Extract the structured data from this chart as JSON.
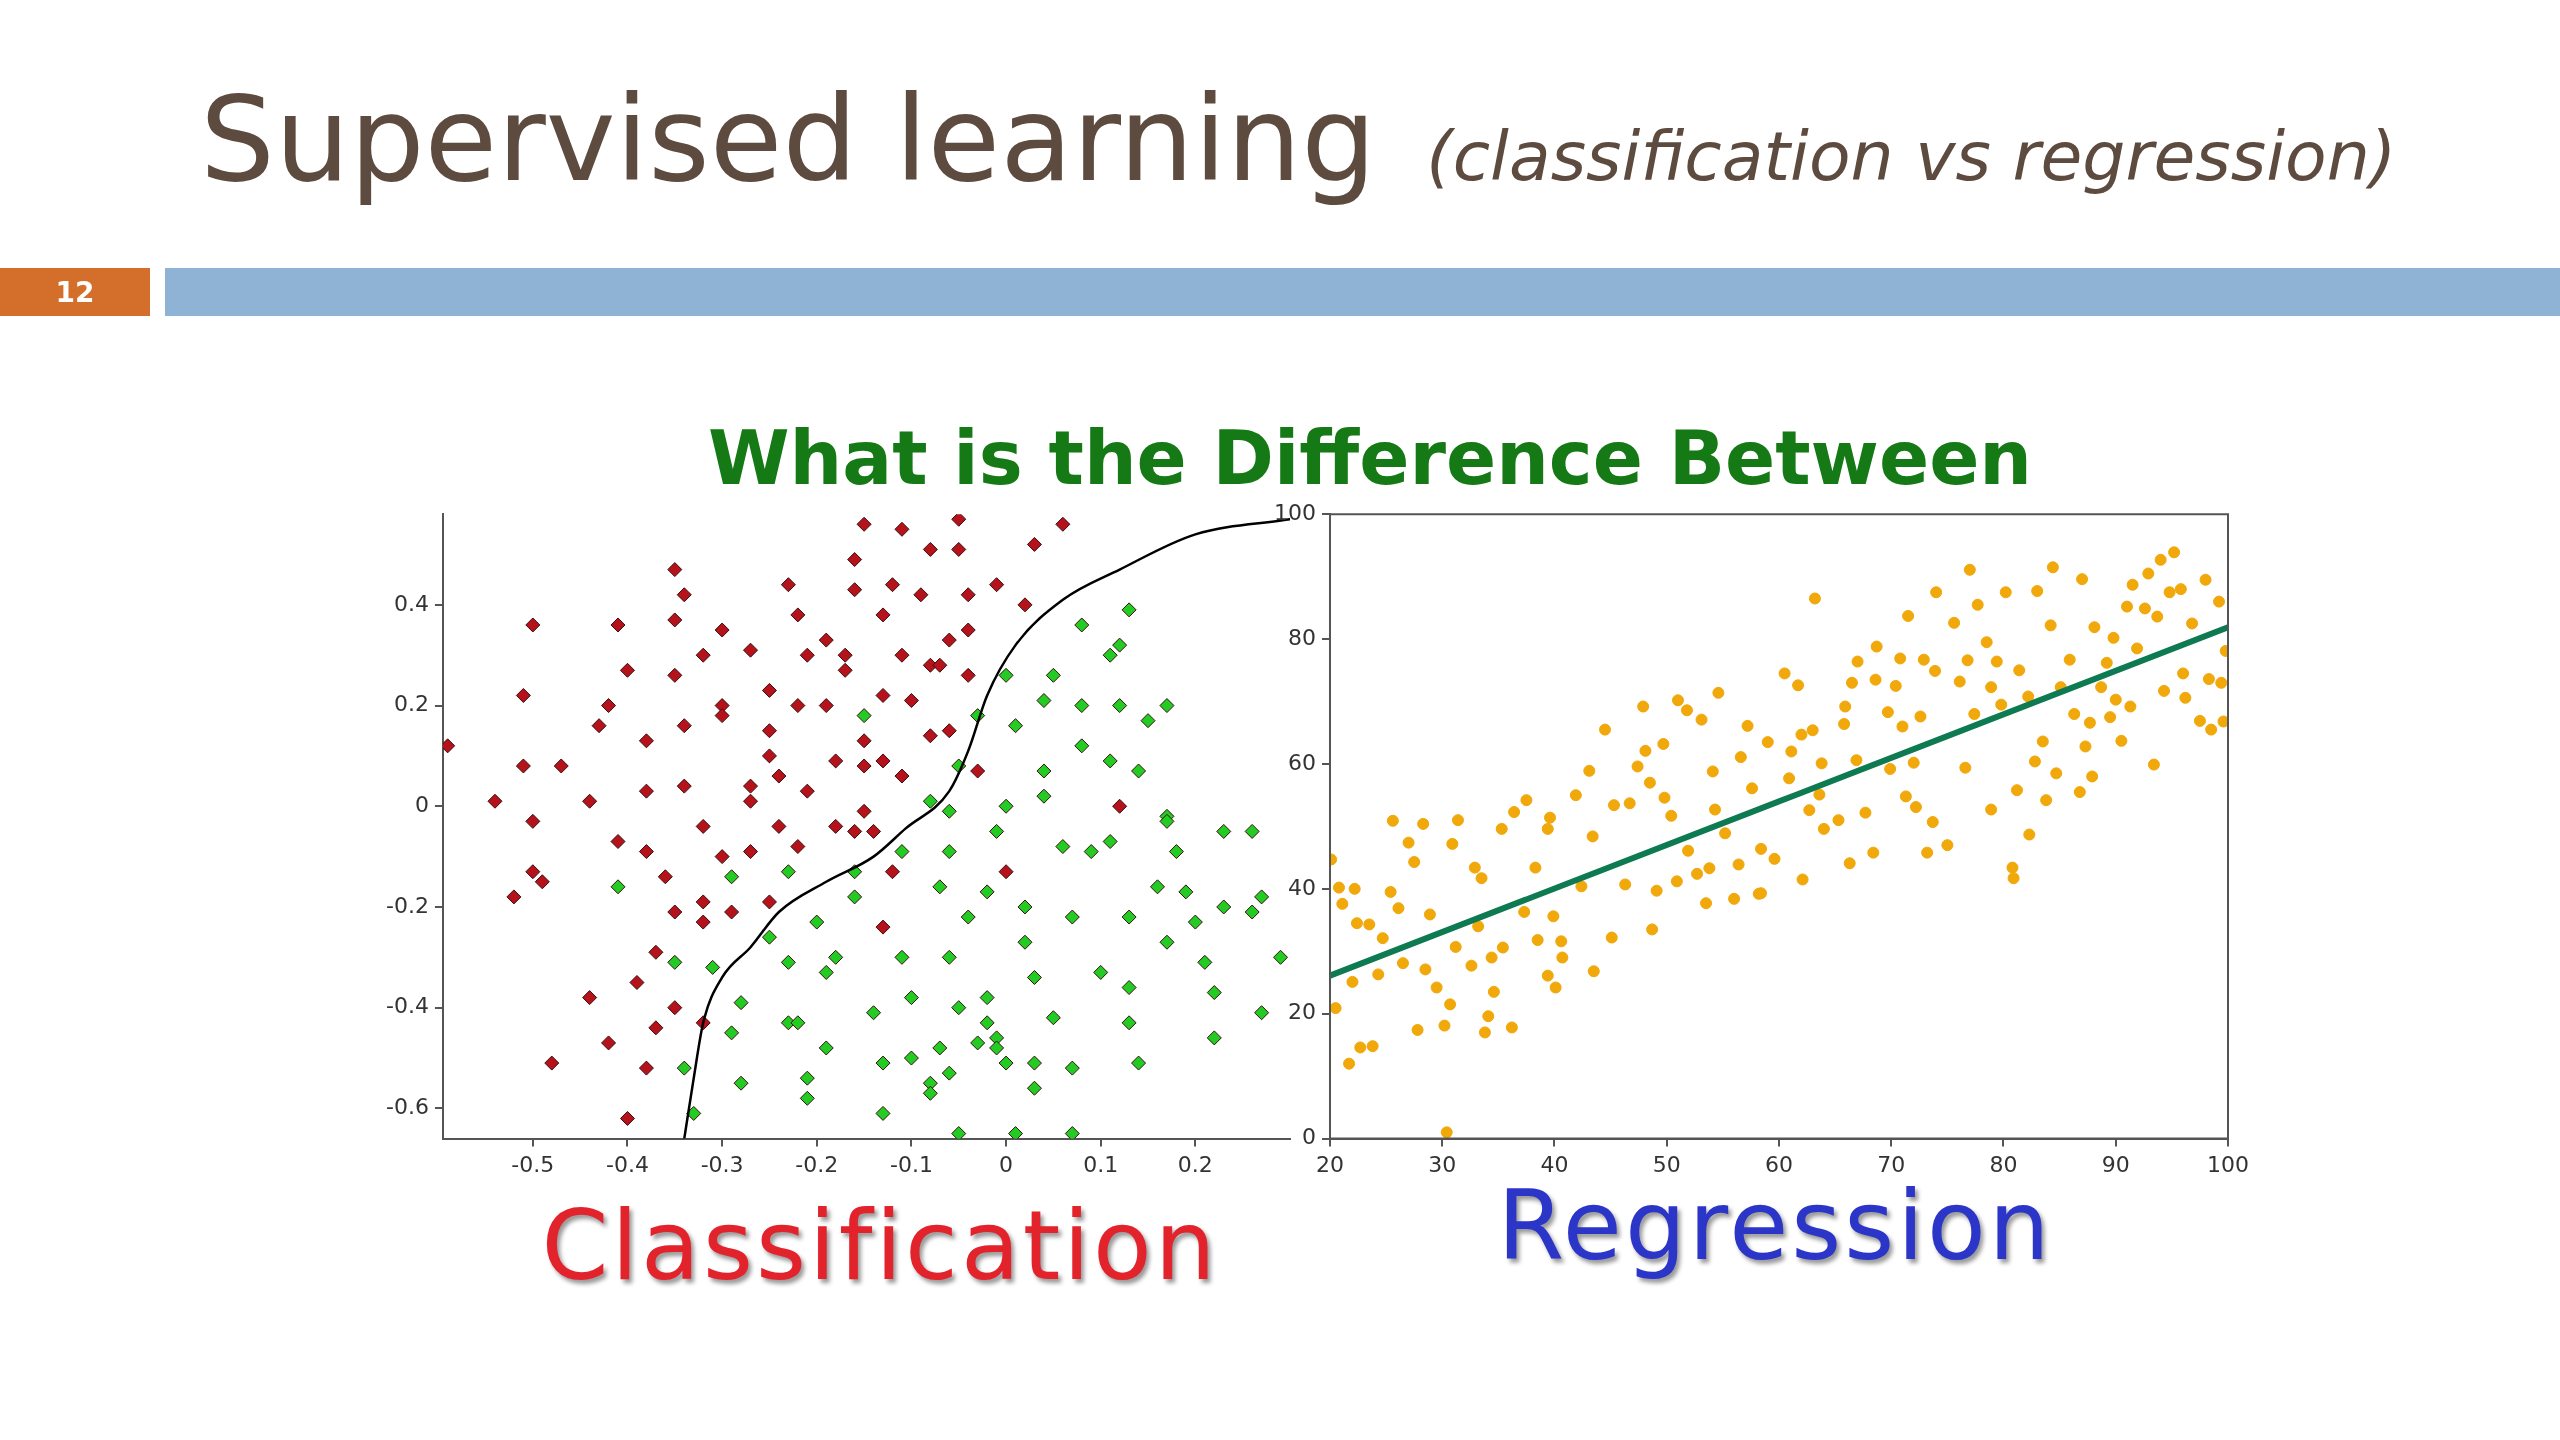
{
  "chart_data": [
    {
      "type": "other",
      "title": "Supervised learning",
      "subtitle": "(classification vs regression)",
      "annotations": [
        "12",
        "What is the Difference Between"
      ]
    },
    {
      "type": "scatter",
      "xlabel": "Classification",
      "marker": "diamond",
      "xlim": [
        -0.595,
        0.3
      ],
      "ylim": [
        -0.66,
        0.58
      ],
      "xticks": [
        -0.5,
        -0.4,
        -0.3,
        -0.2,
        -0.1,
        0,
        0.1,
        0.2
      ],
      "yticks": [
        -0.6,
        -0.4,
        -0.2,
        0,
        0.2,
        0.4
      ],
      "series": [
        {
          "color": "#b5121b",
          "x": [
            -0.59,
            -0.54,
            -0.5,
            -0.51,
            -0.51,
            -0.47,
            -0.5,
            -0.44,
            -0.43,
            -0.42,
            -0.41,
            -0.4,
            -0.38,
            -0.38,
            -0.35,
            -0.35,
            -0.34,
            -0.35,
            -0.34,
            -0.34,
            -0.32,
            -0.3,
            -0.3,
            -0.3,
            -0.27,
            -0.27,
            -0.27,
            -0.25,
            -0.25,
            -0.25,
            -0.24,
            -0.23,
            -0.22,
            -0.21,
            -0.22,
            -0.21,
            -0.19,
            -0.19,
            -0.18,
            -0.17,
            -0.17,
            -0.16,
            -0.16,
            -0.15,
            -0.15,
            -0.15,
            -0.15,
            -0.13,
            -0.13,
            -0.13,
            -0.12,
            -0.11,
            -0.11,
            -0.11,
            -0.1,
            -0.09,
            -0.08,
            -0.08,
            -0.08,
            -0.07,
            -0.06,
            -0.06,
            -0.05,
            -0.05,
            -0.04,
            -0.04,
            -0.04,
            -0.03,
            -0.01,
            0.02,
            0.03,
            0.06,
            0.12,
            -0.32,
            -0.24,
            -0.18,
            -0.16,
            -0.14,
            -0.41,
            -0.38,
            -0.3,
            -0.27,
            -0.22,
            -0.5,
            -0.49,
            -0.52,
            -0.36,
            -0.32,
            -0.29,
            -0.25,
            -0.35,
            -0.32,
            -0.12,
            0.0,
            -0.13,
            -0.37,
            -0.44,
            -0.39,
            -0.35,
            -0.37,
            -0.32,
            -0.42,
            -0.48,
            -0.38,
            -0.4
          ],
          "values": [
            0.12,
            0.01,
            0.36,
            0.22,
            0.08,
            0.08,
            -0.03,
            0.01,
            0.16,
            0.2,
            0.36,
            0.27,
            0.13,
            0.03,
            0.37,
            0.47,
            0.42,
            0.26,
            0.16,
            0.04,
            0.3,
            0.35,
            0.2,
            0.18,
            0.31,
            0.04,
            0.01,
            0.23,
            0.15,
            0.1,
            0.06,
            0.44,
            0.38,
            0.3,
            0.2,
            0.03,
            0.33,
            0.2,
            0.09,
            0.3,
            0.27,
            0.49,
            0.43,
            0.56,
            0.13,
            0.08,
            -0.01,
            0.09,
            0.38,
            0.22,
            0.44,
            0.3,
            0.55,
            0.06,
            0.21,
            0.42,
            0.28,
            0.14,
            0.51,
            0.28,
            0.33,
            0.15,
            0.57,
            0.51,
            0.35,
            0.42,
            0.26,
            0.07,
            0.44,
            0.4,
            0.52,
            0.56,
            0.0,
            -0.04,
            -0.04,
            -0.04,
            -0.05,
            -0.05,
            -0.07,
            -0.09,
            -0.1,
            -0.09,
            -0.08,
            -0.13,
            -0.15,
            -0.18,
            -0.14,
            -0.19,
            -0.21,
            -0.19,
            -0.21,
            -0.23,
            -0.13,
            -0.13,
            -0.24,
            -0.29,
            -0.38,
            -0.35,
            -0.4,
            -0.44,
            -0.43,
            -0.47,
            -0.51,
            -0.52,
            -0.62
          ]
        },
        {
          "color": "#22cc22",
          "x": [
            -0.15,
            0.0,
            -0.03,
            -0.05,
            -0.08,
            -0.06,
            0.0,
            0.01,
            0.05,
            0.04,
            0.04,
            0.04,
            0.08,
            0.13,
            0.12,
            0.11,
            0.08,
            0.12,
            0.15,
            0.17,
            0.08,
            0.11,
            0.14,
            0.17,
            -0.01,
            -0.11,
            -0.06,
            0.06,
            0.09,
            0.11,
            0.17,
            0.23,
            0.26,
            0.18,
            -0.41,
            -0.29,
            -0.23,
            -0.16,
            -0.16,
            -0.07,
            -0.02,
            0.02,
            0.07,
            0.13,
            0.16,
            0.19,
            0.23,
            0.26,
            0.27,
            -0.04,
            0.2,
            -0.2,
            -0.25,
            0.02,
            0.17,
            -0.35,
            -0.31,
            -0.23,
            -0.18,
            -0.19,
            -0.11,
            -0.06,
            0.03,
            0.1,
            0.21,
            0.29,
            -0.28,
            -0.1,
            -0.14,
            -0.05,
            -0.02,
            -0.02,
            0.05,
            0.13,
            0.13,
            0.22,
            0.27,
            -0.23,
            -0.22,
            -0.29,
            -0.03,
            -0.01,
            0.22,
            -0.19,
            -0.07,
            -0.01,
            -0.1,
            -0.13,
            0.0,
            0.03,
            0.07,
            0.14,
            -0.34,
            -0.06,
            -0.21,
            -0.28,
            -0.08,
            -0.08,
            0.03,
            -0.21,
            -0.33,
            -0.13,
            -0.05,
            0.07,
            0.01
          ],
          "values": [
            0.18,
            0.26,
            0.18,
            0.08,
            0.01,
            -0.01,
            0.0,
            0.16,
            0.26,
            0.21,
            0.07,
            0.02,
            0.36,
            0.39,
            0.32,
            0.3,
            0.2,
            0.2,
            0.17,
            0.2,
            0.12,
            0.09,
            0.07,
            -0.02,
            -0.05,
            -0.09,
            -0.09,
            -0.08,
            -0.09,
            -0.07,
            -0.03,
            -0.05,
            -0.05,
            -0.09,
            -0.16,
            -0.14,
            -0.13,
            -0.13,
            -0.18,
            -0.16,
            -0.17,
            -0.2,
            -0.22,
            -0.22,
            -0.16,
            -0.17,
            -0.2,
            -0.21,
            -0.18,
            -0.22,
            -0.23,
            -0.23,
            -0.26,
            -0.27,
            -0.27,
            -0.31,
            -0.32,
            -0.31,
            -0.3,
            -0.33,
            -0.3,
            -0.3,
            -0.34,
            -0.33,
            -0.31,
            -0.3,
            -0.39,
            -0.38,
            -0.41,
            -0.4,
            -0.38,
            -0.43,
            -0.42,
            -0.36,
            -0.43,
            -0.37,
            -0.41,
            -0.43,
            -0.43,
            -0.45,
            -0.47,
            -0.46,
            -0.46,
            -0.48,
            -0.48,
            -0.48,
            -0.5,
            -0.51,
            -0.51,
            -0.51,
            -0.52,
            -0.51,
            -0.52,
            -0.53,
            -0.54,
            -0.55,
            -0.55,
            -0.57,
            -0.56,
            -0.58,
            -0.61,
            -0.61,
            -0.65,
            -0.65,
            -0.65
          ]
        },
        {
          "type": "line",
          "marker": "none",
          "color": "#000000",
          "x": [
            -0.34,
            -0.33,
            -0.32,
            -0.3,
            -0.27,
            -0.24,
            -0.19,
            -0.14,
            -0.106,
            -0.06,
            -0.04,
            -0.02,
            0.01,
            0.06,
            0.12,
            0.2,
            0.3
          ],
          "values": [
            -0.66,
            -0.54,
            -0.43,
            -0.34,
            -0.28,
            -0.21,
            -0.15,
            -0.1,
            -0.044,
            0.03,
            0.11,
            0.22,
            0.32,
            0.41,
            0.47,
            0.54,
            0.57
          ]
        }
      ]
    },
    {
      "type": "scatter",
      "xlabel": "Regression",
      "marker": "circle",
      "xlim": [
        20,
        100
      ],
      "ylim": [
        0,
        100
      ],
      "xticks": [
        20,
        30,
        40,
        50,
        60,
        70,
        80,
        90,
        100
      ],
      "yticks": [
        0,
        20,
        40,
        60,
        80,
        100
      ],
      "series": [
        {
          "color": "#f0a80a",
          "x": [
            20.1,
            20.8,
            21.1,
            20.5,
            21.7,
            22.0,
            22.2,
            22.4,
            22.7,
            23.5,
            23.8,
            24.3,
            24.7,
            25.4,
            25.6,
            26.1,
            26.5,
            27.0,
            27.5,
            27.8,
            28.3,
            28.9,
            28.5,
            29.5,
            30.2,
            30.4,
            30.7,
            30.9,
            31.4,
            31.2,
            32.6,
            32.9,
            33.5,
            33.2,
            33.8,
            34.1,
            34.6,
            34.4,
            35.3,
            35.4,
            36.2,
            36.4,
            37.3,
            37.5,
            38.5,
            38.3,
            39.4,
            39.4,
            39.6,
            40.1,
            39.9,
            40.6,
            40.7,
            41.9,
            42.4,
            43.1,
            43.5,
            43.4,
            44.5,
            45.1,
            45.3,
            46.3,
            46.7,
            47.4,
            47.9,
            48.1,
            48.5,
            48.7,
            49.1,
            49.7,
            49.8,
            50.4,
            50.9,
            51.0,
            51.8,
            51.9,
            52.7,
            53.1,
            53.5,
            53.8,
            54.1,
            54.6,
            54.3,
            55.2,
            56.0,
            56.4,
            56.6,
            57.2,
            57.6,
            58.2,
            58.4,
            59.0,
            63.2,
            60.5,
            61.7,
            61.1,
            60.9,
            58.4,
            59.6,
            62.1,
            62.0,
            63.0,
            63.8,
            63.6,
            62.7,
            64.0,
            65.3,
            66.3,
            65.8,
            65.9,
            66.5,
            67.0,
            66.9,
            67.7,
            68.4,
            68.7,
            68.6,
            69.7,
            69.9,
            70.4,
            70.8,
            71.0,
            71.5,
            71.3,
            72.2,
            72.0,
            72.6,
            72.9,
            73.2,
            73.7,
            73.9,
            74.0,
            75.0,
            75.6,
            76.1,
            76.6,
            76.8,
            77.0,
            77.7,
            77.4,
            78.5,
            78.9,
            78.9,
            79.4,
            79.8,
            80.2,
            80.8,
            80.9,
            81.2,
            81.4,
            82.2,
            82.3,
            82.8,
            83.0,
            83.5,
            83.8,
            84.2,
            84.4,
            84.7,
            85.1,
            85.9,
            86.3,
            86.8,
            87.0,
            87.3,
            87.7,
            87.9,
            88.1,
            88.7,
            89.2,
            89.5,
            89.8,
            90.0,
            90.5,
            91.0,
            91.3,
            91.5,
            91.9,
            92.6,
            92.9,
            93.4,
            93.7,
            94.0,
            94.3,
            94.8,
            95.2,
            95.8,
            96.0,
            96.2,
            96.8,
            97.5,
            98.0,
            98.3,
            98.5,
            99.2,
            99.4,
            99.8,
            99.6
          ],
          "values": [
            44.7,
            40.2,
            37.6,
            20.9,
            12.0,
            25.1,
            40.0,
            34.5,
            14.6,
            34.3,
            14.8,
            26.3,
            32.1,
            39.5,
            50.9,
            36.9,
            28.1,
            47.4,
            44.3,
            17.4,
            50.4,
            35.9,
            27.1,
            24.2,
            18.1,
            1.0,
            21.5,
            47.2,
            51.0,
            30.7,
            27.7,
            43.4,
            41.7,
            34.0,
            17.0,
            19.6,
            23.5,
            29.0,
            49.6,
            30.6,
            17.8,
            52.3,
            36.3,
            54.2,
            31.8,
            43.4,
            26.1,
            49.6,
            51.4,
            24.2,
            35.6,
            31.6,
            29.0,
            55.0,
            40.4,
            58.9,
            26.8,
            48.4,
            65.5,
            32.2,
            53.4,
            40.7,
            53.7,
            59.6,
            69.2,
            62.1,
            57.0,
            33.5,
            39.7,
            63.2,
            54.6,
            51.7,
            41.2,
            70.2,
            68.6,
            46.1,
            42.4,
            67.1,
            37.7,
            43.3,
            58.8,
            71.4,
            52.7,
            48.9,
            38.4,
            43.9,
            61.1,
            66.1,
            56.1,
            39.2,
            46.4,
            63.5,
            86.5,
            74.5,
            72.6,
            62.0,
            57.7,
            39.3,
            44.8,
            41.5,
            64.7,
            65.4,
            60.1,
            55.1,
            52.6,
            49.6,
            51.0,
            44.1,
            66.4,
            69.2,
            73.0,
            76.4,
            60.6,
            52.2,
            45.8,
            78.8,
            73.5,
            68.3,
            59.2,
            72.5,
            76.9,
            66.0,
            83.7,
            54.8,
            53.1,
            60.2,
            67.6,
            76.7,
            45.8,
            50.7,
            74.9,
            87.5,
            47.0,
            82.6,
            73.2,
            59.4,
            76.6,
            91.1,
            85.5,
            68.0,
            79.5,
            52.7,
            72.3,
            76.4,
            69.5,
            87.5,
            43.4,
            41.7,
            55.8,
            75.0,
            70.8,
            48.7,
            60.4,
            87.7,
            63.6,
            54.2,
            82.2,
            91.5,
            58.5,
            72.3,
            76.7,
            68.0,
            55.5,
            89.6,
            62.8,
            66.6,
            58.0,
            81.9,
            72.3,
            76.2,
            67.5,
            80.2,
            70.3,
            63.7,
            85.2,
            69.2,
            88.7,
            78.5,
            84.9,
            90.5,
            59.9,
            83.6,
            92.7,
            71.7,
            87.5,
            93.9,
            88.0,
            74.5,
            70.6,
            82.5,
            66.9,
            89.5,
            73.6,
            65.5,
            86.0,
            73.0,
            78.1,
            66.8
          ]
        },
        {
          "type": "line",
          "marker": "none",
          "color": "#0e7a52",
          "x": [
            20,
            100
          ],
          "values": [
            26.1,
            81.9
          ]
        }
      ]
    }
  ]
}
